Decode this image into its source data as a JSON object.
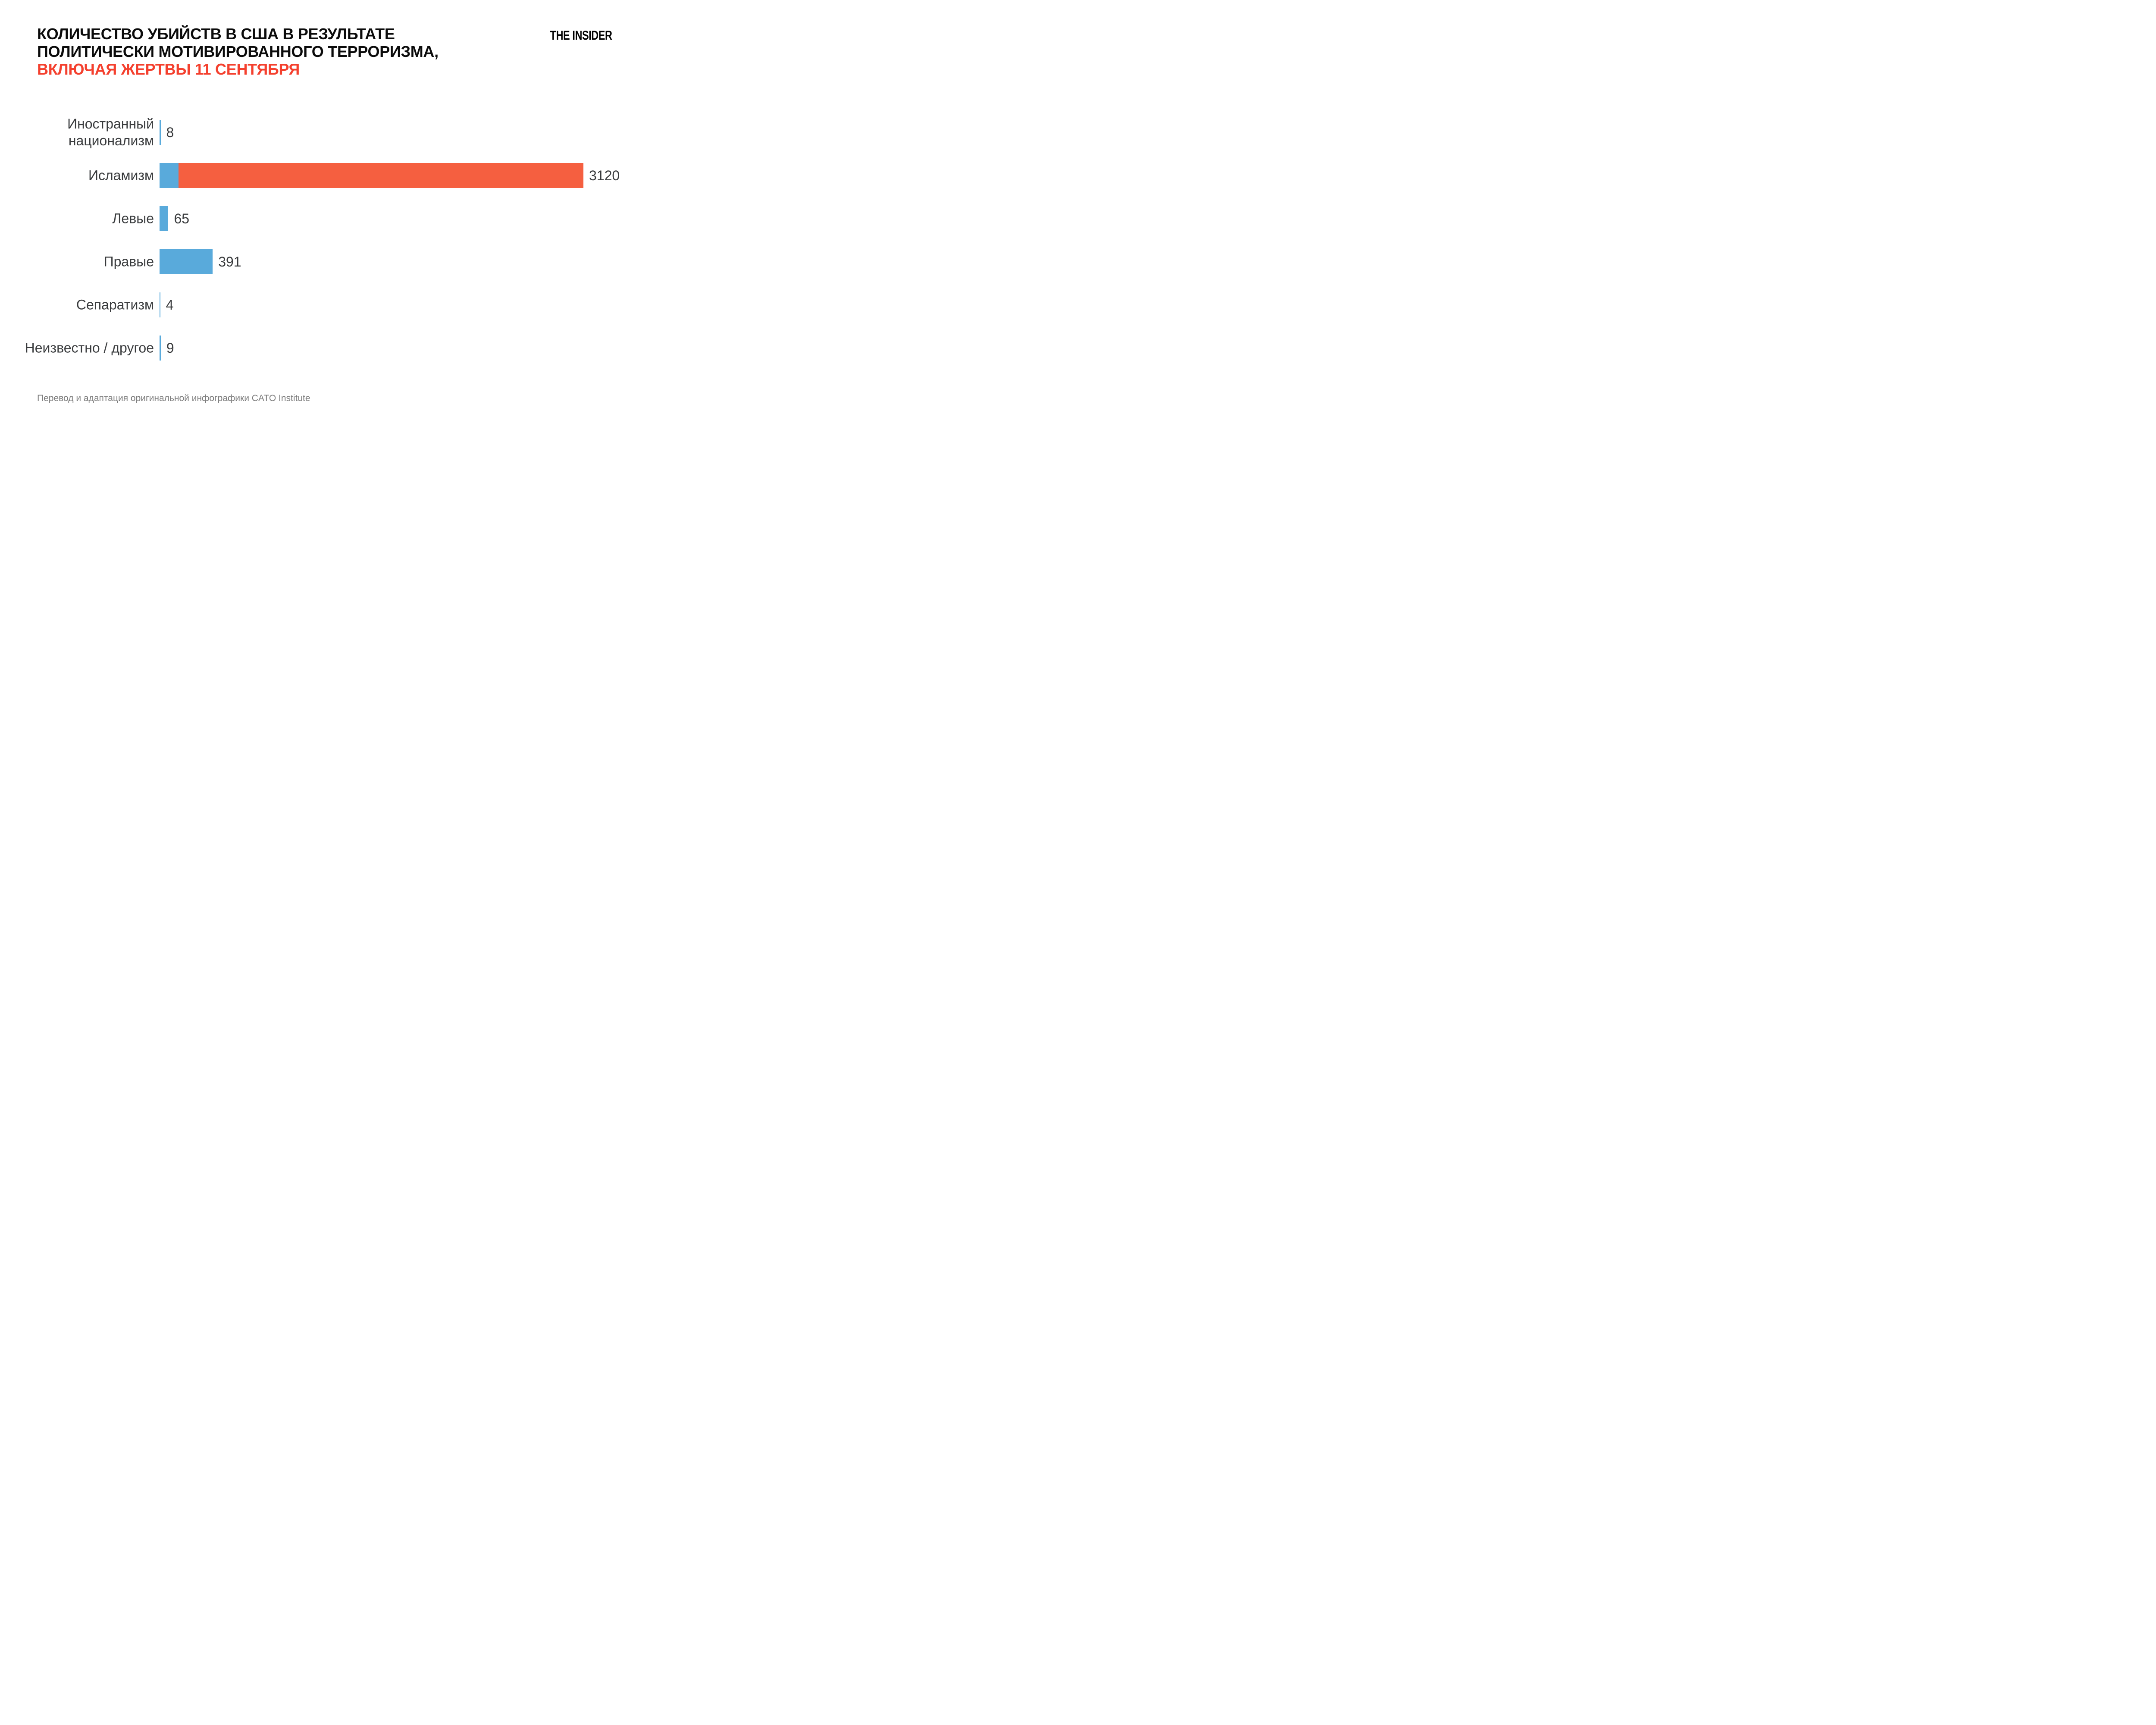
{
  "header": {
    "title_line1": "КОЛИЧЕСТВО УБИЙСТВ В США В РЕЗУЛЬТАТЕ",
    "title_line2": "ПОЛИТИЧЕСКИ МОТИВИРОВАННОГО ТЕРРОРИЗМА,",
    "title_line3": "ВКЛЮЧАЯ ЖЕРТВЫ 11 СЕНТЯБРЯ",
    "logo": "THE INSIDER"
  },
  "colors": {
    "bar_blue": "#59AADB",
    "bar_red": "#F55F40",
    "title_red": "#F4402E",
    "text_dark": "#393B3D",
    "footnote_gray": "#7B7B7B",
    "background": "#FFFFFF"
  },
  "chart_data": {
    "type": "bar",
    "orientation": "horizontal",
    "title": "КОЛИЧЕСТВО УБИЙСТВ В США В РЕЗУЛЬТАТЕ ПОЛИТИЧЕСКИ МОТИВИРОВАННОГО ТЕРРОРИЗМА,",
    "subtitle": "ВКЛЮЧАЯ ЖЕРТВЫ 11 СЕНТЯБРЯ",
    "categories": [
      "Иностранный национализм",
      "Исламизм",
      "Левые",
      "Правые",
      "Сепаратизм",
      "Неизвестно / другое"
    ],
    "values": [
      8,
      3120,
      65,
      391,
      4,
      9
    ],
    "xlim": [
      0,
      3120
    ],
    "grid": false,
    "legend": "none",
    "bars": [
      {
        "label_lines": [
          "Иностранный",
          "национализм"
        ],
        "value": 8,
        "display_value": "8",
        "segments": [
          {
            "color_key": "bar_blue",
            "value": 8
          }
        ]
      },
      {
        "label_lines": [
          "Исламизм"
        ],
        "value": 3120,
        "display_value": "3120",
        "segments": [
          {
            "color_key": "bar_blue",
            "value": 140
          },
          {
            "color_key": "bar_red",
            "value": 2980
          }
        ]
      },
      {
        "label_lines": [
          "Левые"
        ],
        "value": 65,
        "display_value": "65",
        "segments": [
          {
            "color_key": "bar_blue",
            "value": 65
          }
        ]
      },
      {
        "label_lines": [
          "Правые"
        ],
        "value": 391,
        "display_value": "391",
        "segments": [
          {
            "color_key": "bar_blue",
            "value": 391
          }
        ]
      },
      {
        "label_lines": [
          "Сепаратизм"
        ],
        "value": 4,
        "display_value": "4",
        "segments": [
          {
            "color_key": "bar_blue",
            "value": 4
          }
        ]
      },
      {
        "label_lines": [
          "Неизвестно / другое"
        ],
        "value": 9,
        "display_value": "9",
        "segments": [
          {
            "color_key": "bar_blue",
            "value": 9
          }
        ]
      }
    ]
  },
  "footer": {
    "source_note": "Перевод и адаптация оригинальной инфографики CATO Institute"
  }
}
